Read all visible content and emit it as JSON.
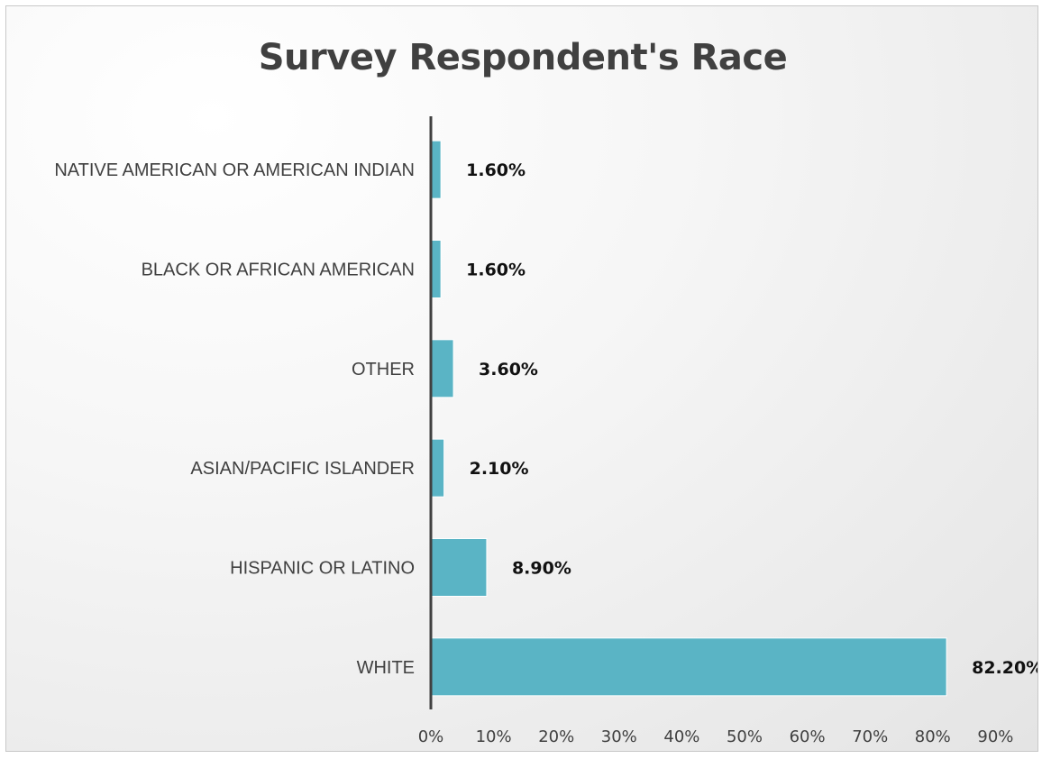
{
  "chart_data": {
    "type": "bar",
    "orientation": "horizontal",
    "title": "Survey Respondent's Race",
    "xlabel": "",
    "ylabel": "",
    "categories": [
      "NATIVE AMERICAN OR AMERICAN INDIAN",
      "BLACK OR AFRICAN AMERICAN",
      "OTHER",
      "ASIAN/PACIFIC ISLANDER",
      "HISPANIC OR LATINO",
      "WHITE"
    ],
    "values": [
      1.6,
      1.6,
      3.6,
      2.1,
      8.9,
      82.2
    ],
    "data_labels": [
      "1.60%",
      "1.60%",
      "3.60%",
      "2.10%",
      "8.90%",
      "82.20%"
    ],
    "xlim": [
      0,
      90
    ],
    "x_ticks": [
      0,
      10,
      20,
      30,
      40,
      50,
      60,
      70,
      80,
      90
    ],
    "x_tick_labels": [
      "0%",
      "10%",
      "20%",
      "30%",
      "40%",
      "50%",
      "60%",
      "70%",
      "80%",
      "90%"
    ],
    "grid": false,
    "legend": "none",
    "bar_color": "#5ab4c5",
    "axis_color": "#404040"
  }
}
